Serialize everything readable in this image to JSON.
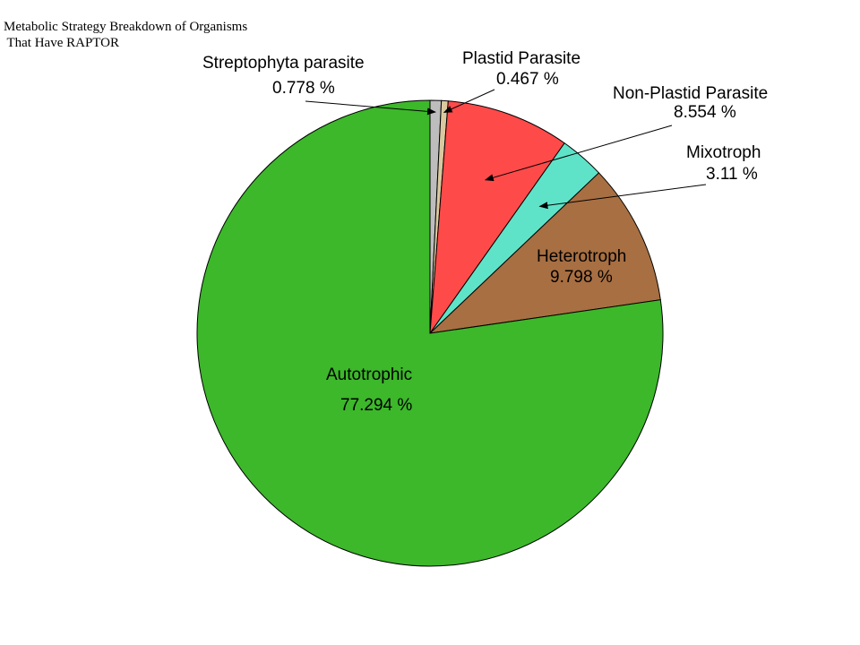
{
  "chart_data": {
    "type": "pie",
    "title_lines": [
      "Metabolic Strategy Breakdown of Organisms",
      " That Have RAPTOR"
    ],
    "slices": [
      {
        "label": "Streptophyta parasite",
        "value_text": "0.778 %",
        "value": 0.778,
        "color": "#bdbdbd"
      },
      {
        "label": "Plastid Parasite",
        "value_text": "0.467 %",
        "value": 0.467,
        "color": "#d9c9a0"
      },
      {
        "label": "Non-Plastid Parasite",
        "value_text": "8.554 %",
        "value": 8.554,
        "color": "#ff4a4a"
      },
      {
        "label": "Mixotroph",
        "value_text": "3.11 %",
        "value": 3.11,
        "color": "#5fe3c8"
      },
      {
        "label": "Heterotroph",
        "value_text": "9.798 %",
        "value": 9.798,
        "color": "#a86f42"
      },
      {
        "label": "Autotrophic",
        "value_text": "77.294 %",
        "value": 77.294,
        "color": "#3cb82a"
      }
    ]
  }
}
